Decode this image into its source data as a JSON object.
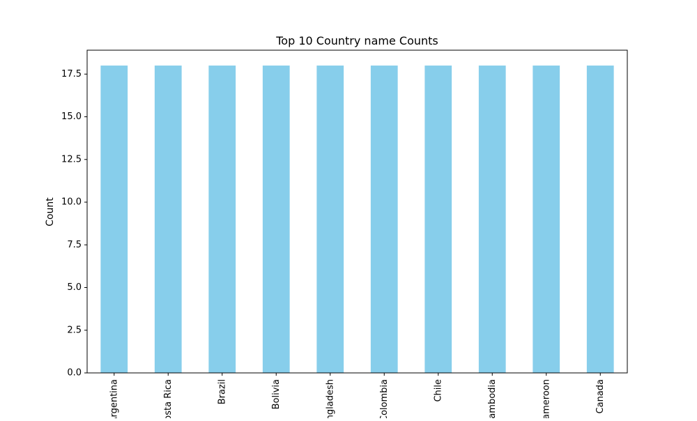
{
  "chart_data": {
    "type": "bar",
    "title": "Top 10 Country name Counts",
    "xlabel": "",
    "ylabel": "Count",
    "categories": [
      "Argentina",
      "Costa Rica",
      "Brazil",
      "Bolivia",
      "Bangladesh",
      "Colombia",
      "Chile",
      "Cambodia",
      "Cameroon",
      "Canada"
    ],
    "values": [
      18,
      18,
      18,
      18,
      18,
      18,
      18,
      18,
      18,
      18
    ],
    "ylim": [
      0,
      18.9
    ],
    "yticks": [
      0.0,
      2.5,
      5.0,
      7.5,
      10.0,
      12.5,
      15.0,
      17.5
    ],
    "ytick_labels": [
      "0.0",
      "2.5",
      "5.0",
      "7.5",
      "10.0",
      "12.5",
      "15.0",
      "17.5"
    ],
    "bar_color": "#87ceeb",
    "grid": false,
    "legend": false
  }
}
